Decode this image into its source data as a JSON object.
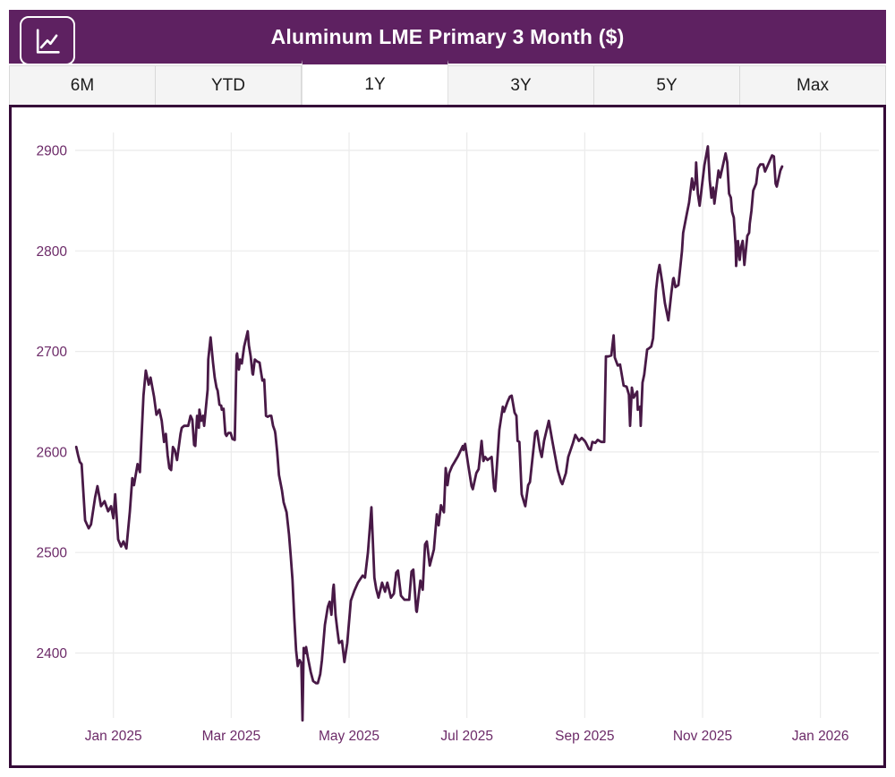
{
  "header": {
    "title": "Aluminum LME Primary 3 Month ($)",
    "icon": "line-chart-icon",
    "background": "#5e2161",
    "text_color": "#ffffff"
  },
  "tabs": {
    "items": [
      {
        "label": "6M",
        "active": false
      },
      {
        "label": "YTD",
        "active": false
      },
      {
        "label": "1Y",
        "active": true
      },
      {
        "label": "3Y",
        "active": false
      },
      {
        "label": "5Y",
        "active": false
      },
      {
        "label": "Max",
        "active": false
      }
    ]
  },
  "chart_data": {
    "type": "line",
    "title": "Aluminum LME Primary 3 Month ($)",
    "legend": "none",
    "grid": true,
    "line_color": "#481946",
    "grid_color": "#ebebeb",
    "axis_text_color": "#6c2a68",
    "x_unit": "months since 2025-01-01 (1Y window: ~Dec 12 2024 to ~Dec 11 2025)",
    "xticks": [
      {
        "m": 0,
        "label": "Jan 2025"
      },
      {
        "m": 2,
        "label": "Mar 2025"
      },
      {
        "m": 4,
        "label": "May 2025"
      },
      {
        "m": 6,
        "label": "Jul 2025"
      },
      {
        "m": 8,
        "label": "Sep 2025"
      },
      {
        "m": 10,
        "label": "Nov 2025"
      },
      {
        "m": 12,
        "label": "Jan 2026"
      }
    ],
    "yticks": [
      2400,
      2500,
      2600,
      2700,
      2800,
      2900
    ],
    "ylim": [
      2400,
      2900
    ],
    "points": [
      [
        -0.63,
        2605
      ],
      [
        -0.6,
        2597
      ],
      [
        -0.57,
        2590
      ],
      [
        -0.54,
        2588
      ],
      [
        -0.48,
        2532
      ],
      [
        -0.42,
        2524
      ],
      [
        -0.38,
        2528
      ],
      [
        -0.31,
        2555
      ],
      [
        -0.27,
        2566
      ],
      [
        -0.21,
        2546
      ],
      [
        -0.15,
        2551
      ],
      [
        -0.09,
        2541
      ],
      [
        -0.04,
        2546
      ],
      [
        0.0,
        2534
      ],
      [
        0.03,
        2558
      ],
      [
        0.08,
        2513
      ],
      [
        0.13,
        2506
      ],
      [
        0.17,
        2511
      ],
      [
        0.22,
        2504
      ],
      [
        0.28,
        2541
      ],
      [
        0.32,
        2574
      ],
      [
        0.35,
        2567
      ],
      [
        0.41,
        2588
      ],
      [
        0.45,
        2580
      ],
      [
        0.51,
        2656
      ],
      [
        0.55,
        2681
      ],
      [
        0.6,
        2667
      ],
      [
        0.63,
        2674
      ],
      [
        0.69,
        2655
      ],
      [
        0.73,
        2637
      ],
      [
        0.78,
        2642
      ],
      [
        0.82,
        2631
      ],
      [
        0.86,
        2610
      ],
      [
        0.89,
        2618
      ],
      [
        0.92,
        2597
      ],
      [
        0.95,
        2584
      ],
      [
        0.98,
        2582
      ],
      [
        1.01,
        2605
      ],
      [
        1.04,
        2602
      ],
      [
        1.08,
        2592
      ],
      [
        1.14,
        2618
      ],
      [
        1.16,
        2624
      ],
      [
        1.2,
        2626
      ],
      [
        1.27,
        2626
      ],
      [
        1.31,
        2636
      ],
      [
        1.34,
        2632
      ],
      [
        1.37,
        2607
      ],
      [
        1.39,
        2606
      ],
      [
        1.42,
        2636
      ],
      [
        1.45,
        2624
      ],
      [
        1.46,
        2642
      ],
      [
        1.49,
        2631
      ],
      [
        1.52,
        2636
      ],
      [
        1.54,
        2626
      ],
      [
        1.6,
        2662
      ],
      [
        1.61,
        2692
      ],
      [
        1.65,
        2714
      ],
      [
        1.69,
        2689
      ],
      [
        1.72,
        2674
      ],
      [
        1.75,
        2664
      ],
      [
        1.77,
        2661
      ],
      [
        1.8,
        2647
      ],
      [
        1.83,
        2646
      ],
      [
        1.84,
        2642
      ],
      [
        1.87,
        2643
      ],
      [
        1.9,
        2618
      ],
      [
        1.92,
        2616
      ],
      [
        1.95,
        2619
      ],
      [
        1.99,
        2619
      ],
      [
        2.02,
        2613
      ],
      [
        2.06,
        2612
      ],
      [
        2.09,
        2696
      ],
      [
        2.1,
        2698
      ],
      [
        2.13,
        2682
      ],
      [
        2.15,
        2692
      ],
      [
        2.18,
        2688
      ],
      [
        2.22,
        2705
      ],
      [
        2.28,
        2720
      ],
      [
        2.3,
        2706
      ],
      [
        2.33,
        2695
      ],
      [
        2.36,
        2678
      ],
      [
        2.37,
        2677
      ],
      [
        2.4,
        2692
      ],
      [
        2.44,
        2690
      ],
      [
        2.48,
        2689
      ],
      [
        2.51,
        2678
      ],
      [
        2.53,
        2671
      ],
      [
        2.56,
        2672
      ],
      [
        2.59,
        2636
      ],
      [
        2.62,
        2635
      ],
      [
        2.65,
        2636
      ],
      [
        2.68,
        2636
      ],
      [
        2.71,
        2626
      ],
      [
        2.74,
        2621
      ],
      [
        2.75,
        2618
      ],
      [
        2.78,
        2600
      ],
      [
        2.81,
        2577
      ],
      [
        2.86,
        2562
      ],
      [
        2.89,
        2550
      ],
      [
        2.94,
        2540
      ],
      [
        2.98,
        2518
      ],
      [
        3.01,
        2497
      ],
      [
        3.04,
        2473
      ],
      [
        3.07,
        2435
      ],
      [
        3.1,
        2403
      ],
      [
        3.13,
        2387
      ],
      [
        3.16,
        2393
      ],
      [
        3.19,
        2390
      ],
      [
        3.21,
        2333
      ],
      [
        3.23,
        2405
      ],
      [
        3.26,
        2400
      ],
      [
        3.27,
        2406
      ],
      [
        3.3,
        2396
      ],
      [
        3.35,
        2381
      ],
      [
        3.39,
        2372
      ],
      [
        3.44,
        2370
      ],
      [
        3.47,
        2370
      ],
      [
        3.51,
        2379
      ],
      [
        3.54,
        2393
      ],
      [
        3.59,
        2428
      ],
      [
        3.64,
        2446
      ],
      [
        3.67,
        2451
      ],
      [
        3.7,
        2438
      ],
      [
        3.73,
        2464
      ],
      [
        3.74,
        2468
      ],
      [
        3.77,
        2438
      ],
      [
        3.8,
        2423
      ],
      [
        3.83,
        2410
      ],
      [
        3.88,
        2412
      ],
      [
        3.92,
        2391
      ],
      [
        3.97,
        2410
      ],
      [
        4.03,
        2452
      ],
      [
        4.09,
        2462
      ],
      [
        4.15,
        2470
      ],
      [
        4.23,
        2477
      ],
      [
        4.27,
        2475
      ],
      [
        4.32,
        2500
      ],
      [
        4.38,
        2545
      ],
      [
        4.43,
        2475
      ],
      [
        4.46,
        2464
      ],
      [
        4.5,
        2455
      ],
      [
        4.56,
        2470
      ],
      [
        4.61,
        2461
      ],
      [
        4.65,
        2470
      ],
      [
        4.71,
        2455
      ],
      [
        4.76,
        2459
      ],
      [
        4.8,
        2480
      ],
      [
        4.83,
        2482
      ],
      [
        4.88,
        2457
      ],
      [
        4.94,
        2453
      ],
      [
        5.02,
        2453
      ],
      [
        5.06,
        2481
      ],
      [
        5.09,
        2483
      ],
      [
        5.14,
        2442
      ],
      [
        5.15,
        2441
      ],
      [
        5.21,
        2472
      ],
      [
        5.25,
        2463
      ],
      [
        5.29,
        2508
      ],
      [
        5.32,
        2511
      ],
      [
        5.37,
        2487
      ],
      [
        5.44,
        2503
      ],
      [
        5.49,
        2538
      ],
      [
        5.52,
        2527
      ],
      [
        5.56,
        2547
      ],
      [
        5.61,
        2540
      ],
      [
        5.64,
        2584
      ],
      [
        5.67,
        2567
      ],
      [
        5.7,
        2579
      ],
      [
        5.75,
        2586
      ],
      [
        5.79,
        2590
      ],
      [
        5.85,
        2596
      ],
      [
        5.93,
        2606
      ],
      [
        5.94,
        2602
      ],
      [
        5.97,
        2608
      ],
      [
        6.02,
        2588
      ],
      [
        6.08,
        2566
      ],
      [
        6.1,
        2563
      ],
      [
        6.16,
        2579
      ],
      [
        6.2,
        2583
      ],
      [
        6.25,
        2611
      ],
      [
        6.28,
        2591
      ],
      [
        6.31,
        2595
      ],
      [
        6.35,
        2592
      ],
      [
        6.42,
        2595
      ],
      [
        6.46,
        2564
      ],
      [
        6.48,
        2561
      ],
      [
        6.55,
        2622
      ],
      [
        6.61,
        2645
      ],
      [
        6.63,
        2640
      ],
      [
        6.69,
        2650
      ],
      [
        6.73,
        2655
      ],
      [
        6.76,
        2656
      ],
      [
        6.81,
        2639
      ],
      [
        6.84,
        2636
      ],
      [
        6.86,
        2611
      ],
      [
        6.89,
        2610
      ],
      [
        6.93,
        2558
      ],
      [
        6.98,
        2548
      ],
      [
        6.99,
        2546
      ],
      [
        7.04,
        2567
      ],
      [
        7.07,
        2570
      ],
      [
        7.16,
        2619
      ],
      [
        7.19,
        2621
      ],
      [
        7.24,
        2602
      ],
      [
        7.27,
        2595
      ],
      [
        7.31,
        2611
      ],
      [
        7.39,
        2631
      ],
      [
        7.45,
        2611
      ],
      [
        7.49,
        2598
      ],
      [
        7.54,
        2582
      ],
      [
        7.6,
        2570
      ],
      [
        7.62,
        2568
      ],
      [
        7.68,
        2579
      ],
      [
        7.72,
        2595
      ],
      [
        7.8,
        2609
      ],
      [
        7.84,
        2617
      ],
      [
        7.9,
        2611
      ],
      [
        7.95,
        2614
      ],
      [
        8.0,
        2611
      ],
      [
        8.02,
        2609
      ],
      [
        8.07,
        2603
      ],
      [
        8.1,
        2602
      ],
      [
        8.13,
        2610
      ],
      [
        8.18,
        2609
      ],
      [
        8.22,
        2612
      ],
      [
        8.28,
        2610
      ],
      [
        8.33,
        2610
      ],
      [
        8.36,
        2695
      ],
      [
        8.4,
        2695
      ],
      [
        8.45,
        2696
      ],
      [
        8.49,
        2716
      ],
      [
        8.51,
        2694
      ],
      [
        8.56,
        2686
      ],
      [
        8.6,
        2687
      ],
      [
        8.66,
        2666
      ],
      [
        8.71,
        2665
      ],
      [
        8.75,
        2657
      ],
      [
        8.77,
        2626
      ],
      [
        8.8,
        2664
      ],
      [
        8.83,
        2654
      ],
      [
        8.89,
        2660
      ],
      [
        8.9,
        2642
      ],
      [
        8.94,
        2645
      ],
      [
        8.95,
        2626
      ],
      [
        8.98,
        2669
      ],
      [
        9.01,
        2677
      ],
      [
        9.06,
        2702
      ],
      [
        9.09,
        2703
      ],
      [
        9.13,
        2705
      ],
      [
        9.16,
        2713
      ],
      [
        9.21,
        2761
      ],
      [
        9.24,
        2777
      ],
      [
        9.27,
        2786
      ],
      [
        9.32,
        2767
      ],
      [
        9.36,
        2748
      ],
      [
        9.42,
        2731
      ],
      [
        9.47,
        2758
      ],
      [
        9.5,
        2772
      ],
      [
        9.51,
        2773
      ],
      [
        9.54,
        2764
      ],
      [
        9.59,
        2766
      ],
      [
        9.65,
        2800
      ],
      [
        9.67,
        2818
      ],
      [
        9.73,
        2836
      ],
      [
        9.77,
        2848
      ],
      [
        9.82,
        2872
      ],
      [
        9.85,
        2861
      ],
      [
        9.88,
        2870
      ],
      [
        9.89,
        2888
      ],
      [
        9.92,
        2857
      ],
      [
        9.95,
        2845
      ],
      [
        10.0,
        2870
      ],
      [
        10.03,
        2885
      ],
      [
        10.09,
        2904
      ],
      [
        10.12,
        2871
      ],
      [
        10.15,
        2853
      ],
      [
        10.18,
        2863
      ],
      [
        10.2,
        2847
      ],
      [
        10.27,
        2880
      ],
      [
        10.3,
        2873
      ],
      [
        10.39,
        2897
      ],
      [
        10.42,
        2888
      ],
      [
        10.45,
        2857
      ],
      [
        10.48,
        2853
      ],
      [
        10.5,
        2839
      ],
      [
        10.53,
        2833
      ],
      [
        10.56,
        2806
      ],
      [
        10.57,
        2785
      ],
      [
        10.6,
        2810
      ],
      [
        10.63,
        2791
      ],
      [
        10.65,
        2803
      ],
      [
        10.68,
        2810
      ],
      [
        10.71,
        2786
      ],
      [
        10.76,
        2815
      ],
      [
        10.79,
        2818
      ],
      [
        10.8,
        2827
      ],
      [
        10.83,
        2840
      ],
      [
        10.86,
        2860
      ],
      [
        10.91,
        2867
      ],
      [
        10.94,
        2882
      ],
      [
        10.98,
        2886
      ],
      [
        11.03,
        2886
      ],
      [
        11.06,
        2879
      ],
      [
        11.09,
        2883
      ],
      [
        11.18,
        2895
      ],
      [
        11.21,
        2894
      ],
      [
        11.24,
        2867
      ],
      [
        11.26,
        2864
      ],
      [
        11.32,
        2880
      ],
      [
        11.35,
        2884
      ]
    ]
  }
}
